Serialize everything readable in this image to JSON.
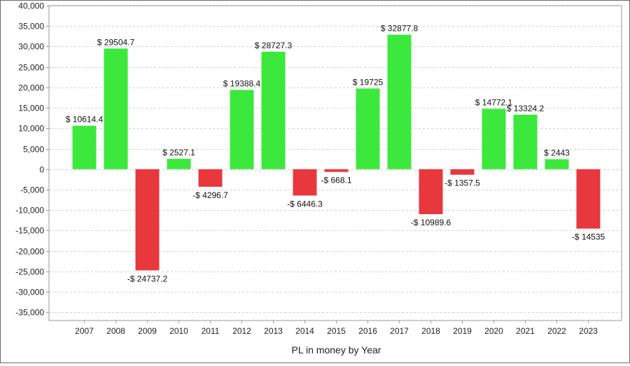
{
  "chart_data": {
    "type": "bar",
    "title": "",
    "xlabel": "PL in money by Year",
    "ylabel": "",
    "categories": [
      "2007",
      "2008",
      "2009",
      "2010",
      "2011",
      "2012",
      "2013",
      "2014",
      "2015",
      "2016",
      "2017",
      "2018",
      "2019",
      "2020",
      "2021",
      "2022",
      "2023"
    ],
    "values": [
      10614.4,
      29504.7,
      -24737.2,
      2527.1,
      -4296.7,
      19388.4,
      28727.3,
      -6446.3,
      -668.1,
      19725,
      32877.8,
      -10989.6,
      -1357.5,
      14772.1,
      13324.2,
      2443,
      -14535
    ],
    "data_labels": [
      "$ 10614.4",
      "$ 29504.7",
      "-$ 24737.2",
      "$ 2527.1",
      "-$ 4296.7",
      "$ 19388.4",
      "$ 28727.3",
      "-$ 6446.3",
      "-$ 668.1",
      "$ 19725",
      "$ 32877.8",
      "-$ 10989.6",
      "-$ 1357.5",
      "$ 14772.1",
      "$ 13324.2",
      "$ 2443",
      "-$ 14535"
    ],
    "ylim": [
      -37000,
      40000
    ],
    "yticks": [
      40000,
      35000,
      30000,
      25000,
      20000,
      15000,
      10000,
      5000,
      0,
      -5000,
      -10000,
      -15000,
      -20000,
      -25000,
      -30000,
      -35000
    ],
    "ytick_labels": [
      "40,000",
      "35,000",
      "30,000",
      "25,000",
      "20,000",
      "15,000",
      "10,000",
      "5,000",
      "0",
      "-5,000",
      "-10,000",
      "-15,000",
      "-20,000",
      "-25,000",
      "-30,000",
      "-35,000"
    ],
    "grid": true,
    "legend": "none",
    "colors": {
      "positive": "#3de83d",
      "negative": "#e8383d",
      "grid": "#d0d0d0",
      "axis": "#9a9a9a"
    }
  }
}
